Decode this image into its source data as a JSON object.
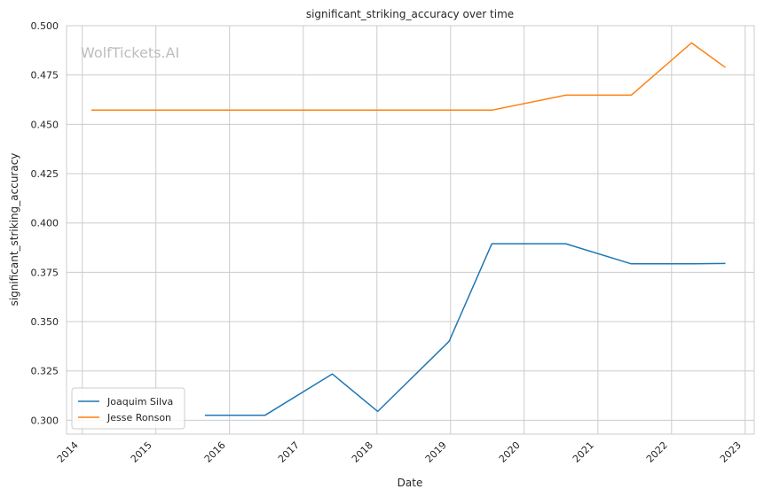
{
  "chart_data": {
    "type": "line",
    "title": "significant_striking_accuracy over time",
    "xlabel": "Date",
    "ylabel": "significant_striking_accuracy",
    "watermark": "WolfTickets.AI",
    "xlim": [
      "2013-10-15",
      "2023-02-15"
    ],
    "ylim": [
      0.293,
      0.5
    ],
    "x_ticks": [
      "2014-01-01",
      "2015-01-01",
      "2016-01-01",
      "2017-01-01",
      "2018-01-01",
      "2019-01-01",
      "2020-01-01",
      "2021-01-01",
      "2022-01-01",
      "2023-01-01"
    ],
    "x_tick_labels": [
      "2014",
      "2015",
      "2016",
      "2017",
      "2018",
      "2019",
      "2020",
      "2021",
      "2022",
      "2023"
    ],
    "y_ticks": [
      0.3,
      0.325,
      0.35,
      0.375,
      0.4,
      0.425,
      0.45,
      0.475,
      0.5
    ],
    "y_tick_labels": [
      "0.300",
      "0.325",
      "0.350",
      "0.375",
      "0.400",
      "0.425",
      "0.450",
      "0.475",
      "0.500"
    ],
    "grid": true,
    "legend_position": "lower-left",
    "series": [
      {
        "name": "Joaquim Silva",
        "color": "#1f77b4",
        "points": [
          {
            "x": "2015-09-01",
            "y": 0.3025
          },
          {
            "x": "2016-06-25",
            "y": 0.3025
          },
          {
            "x": "2017-05-25",
            "y": 0.3235
          },
          {
            "x": "2018-01-05",
            "y": 0.3045
          },
          {
            "x": "2018-12-25",
            "y": 0.34
          },
          {
            "x": "2019-07-25",
            "y": 0.3895
          },
          {
            "x": "2020-07-25",
            "y": 0.3895
          },
          {
            "x": "2021-06-15",
            "y": 0.3793
          },
          {
            "x": "2022-04-15",
            "y": 0.3793
          },
          {
            "x": "2022-09-25",
            "y": 0.3795
          }
        ]
      },
      {
        "name": "Jesse Ronson",
        "color": "#ff7f0e",
        "points": [
          {
            "x": "2014-02-15",
            "y": 0.4572
          },
          {
            "x": "2019-07-25",
            "y": 0.4572
          },
          {
            "x": "2020-07-25",
            "y": 0.4648
          },
          {
            "x": "2021-06-15",
            "y": 0.4648
          },
          {
            "x": "2022-04-10",
            "y": 0.4913
          },
          {
            "x": "2022-09-25",
            "y": 0.4788
          }
        ]
      }
    ]
  }
}
